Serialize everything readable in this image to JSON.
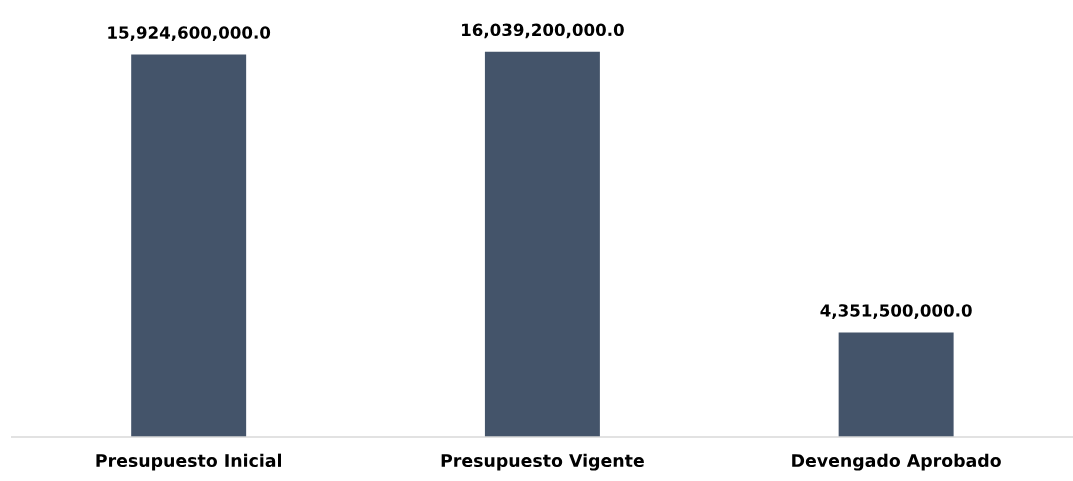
{
  "chart_data": {
    "type": "bar",
    "categories": [
      "Presupuesto Inicial",
      "Presupuesto Vigente",
      "Devengado Aprobado"
    ],
    "values": [
      15924600000.0,
      16039200000.0,
      4351500000.0
    ],
    "color": "#44546a",
    "value_labels": [
      "15,924,600,000.0",
      "16,039,200,000.0",
      "4,351,500,000.0"
    ],
    "grid": false,
    "legend": false
  }
}
